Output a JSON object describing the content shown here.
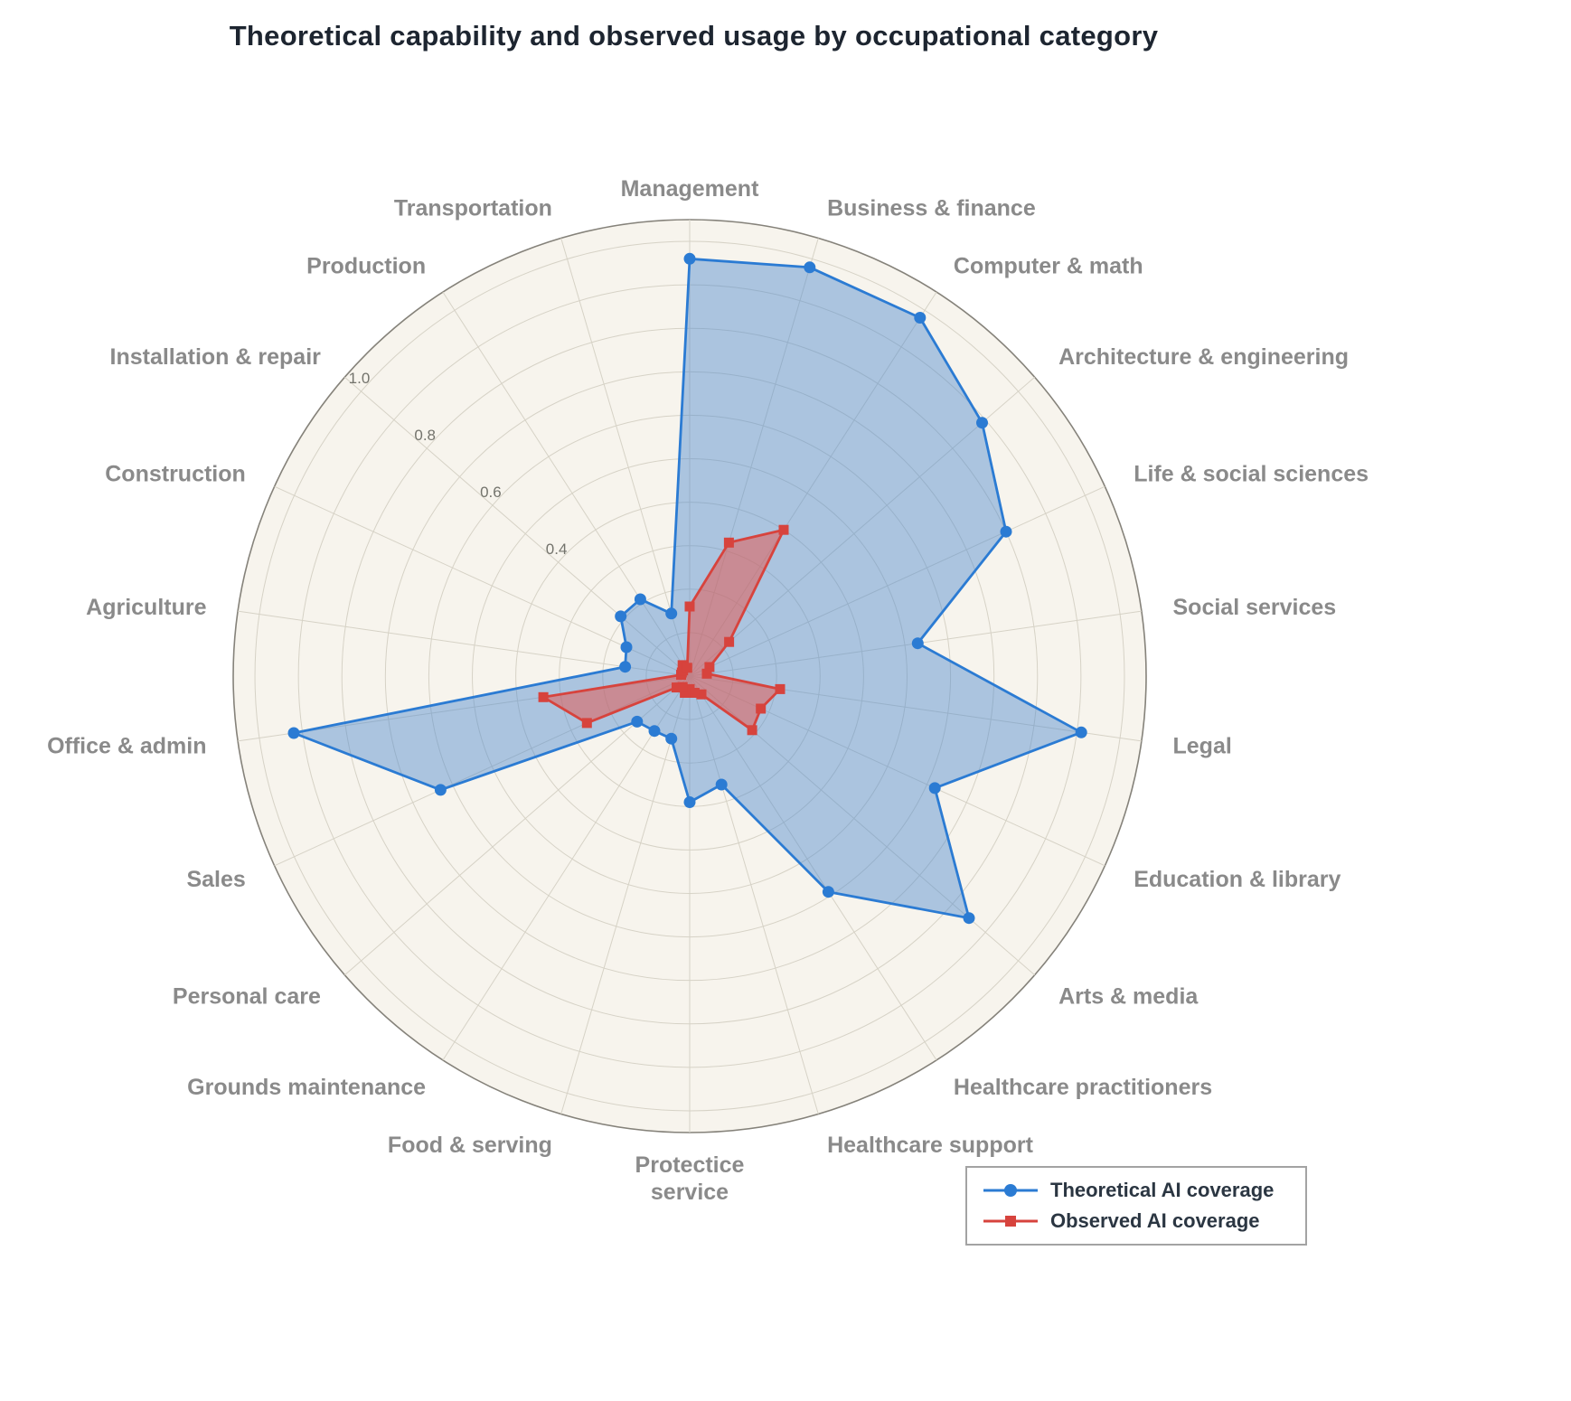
{
  "chart_data": {
    "type": "radar",
    "title": "Theoretical capability and observed usage by occupational category",
    "categories": [
      "Management",
      "Business & finance",
      "Computer & math",
      "Architecture & engineering",
      "Life & social sciences",
      "Social services",
      "Legal",
      "Education & library",
      "Arts & media",
      "Healthcare practitioners",
      "Healthcare support",
      "Protectice\nservice",
      "Food & serving",
      "Grounds maintenance",
      "Personal care",
      "Sales",
      "Office & admin",
      "Agriculture",
      "Construction",
      "Installation & repair",
      "Production",
      "Transportation"
    ],
    "series": [
      {
        "name": "Theoretical AI coverage",
        "marker": "circle",
        "color": "#2b7bd3",
        "fill": "rgba(77,137,207,0.45)",
        "values": [
          0.96,
          0.98,
          0.98,
          0.89,
          0.8,
          0.53,
          0.91,
          0.62,
          0.85,
          0.59,
          0.26,
          0.29,
          0.15,
          0.15,
          0.16,
          0.63,
          0.92,
          0.15,
          0.16,
          0.21,
          0.21,
          0.15
        ]
      },
      {
        "name": "Observed AI coverage",
        "marker": "square",
        "color": "#d7433d",
        "fill": "rgba(226,92,86,0.55)",
        "values": [
          0.16,
          0.32,
          0.4,
          0.12,
          0.05,
          0.04,
          0.21,
          0.18,
          0.19,
          0.05,
          0.04,
          0.03,
          0.04,
          0.03,
          0.04,
          0.26,
          0.34,
          0.02,
          0.02,
          0.02,
          0.03,
          0.02
        ]
      }
    ],
    "radial_ticks": [
      "0.4",
      "0.6",
      "0.8",
      "1.0"
    ],
    "r_max": 1.05,
    "grid_step": 0.1,
    "start_angle_deg": 90,
    "direction": "clockwise",
    "legend_position": "bottom-right",
    "colors": {
      "plot_bg": "#f7f4ed",
      "grid": "#d6d2c6",
      "outer_ring": "#85827a",
      "category_label": "#8a8a8a",
      "tick_label": "#73736c",
      "title": "#1d2530",
      "legend_text": "#2b3642",
      "legend_border": "#a3a3a3"
    }
  }
}
